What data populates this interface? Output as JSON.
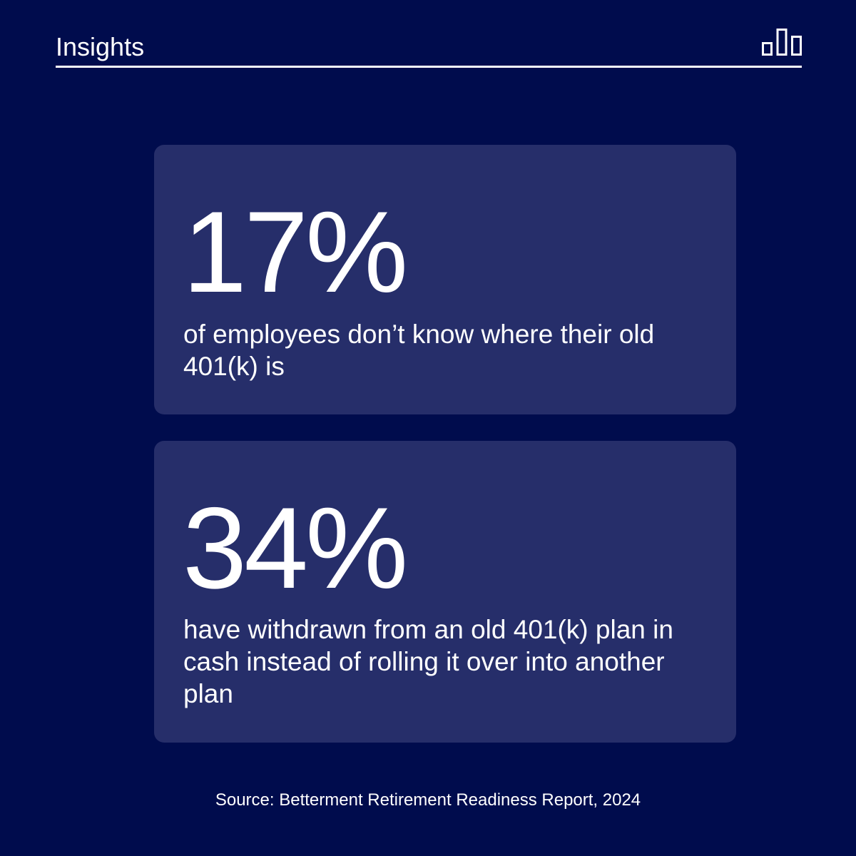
{
  "header": {
    "title": "Insights",
    "logo_icon": "bar-chart-logo-icon"
  },
  "stats": [
    {
      "value": "17%",
      "description": "of employees don’t know where their old 401(k) is"
    },
    {
      "value": "34%",
      "description": "have withdrawn from an old 401(k) plan in cash instead of rolling it over into another plan"
    }
  ],
  "footer": {
    "source": "Source: Betterment Retirement Readiness Report, 2024"
  },
  "colors": {
    "background": "#000c4d",
    "card": "#262e6a",
    "text": "#ffffff"
  }
}
